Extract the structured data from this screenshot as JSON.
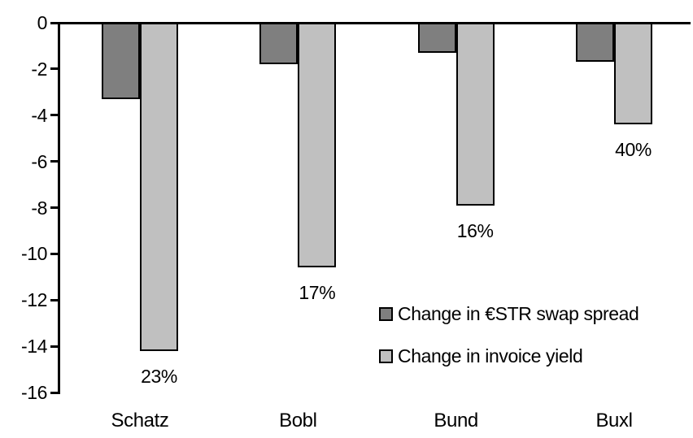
{
  "chart_data": {
    "type": "bar",
    "title": "",
    "xlabel": "",
    "ylabel": "",
    "categories": [
      "Schatz",
      "Bobl",
      "Bund",
      "Buxl"
    ],
    "series": [
      {
        "name": "Change in €STR swap spread",
        "color": "#7f7f7f",
        "values": [
          -3.3,
          -1.8,
          -1.3,
          -1.7
        ]
      },
      {
        "name": "Change in invoice yield",
        "color": "#c0c0c0",
        "values": [
          -14.2,
          -10.6,
          -7.9,
          -4.4
        ]
      }
    ],
    "bar_labels": {
      "series_index": 1,
      "values": [
        "23%",
        "17%",
        "16%",
        "40%"
      ]
    },
    "ylim": [
      -16,
      0
    ],
    "yticks": [
      0,
      -2,
      -4,
      -6,
      -8,
      -10,
      -12,
      -14,
      -16
    ],
    "grid": false,
    "legend_position": "inside-middle-right",
    "axis_color": "#000000",
    "bar_border_color": "#000000",
    "background_color": "#ffffff"
  }
}
